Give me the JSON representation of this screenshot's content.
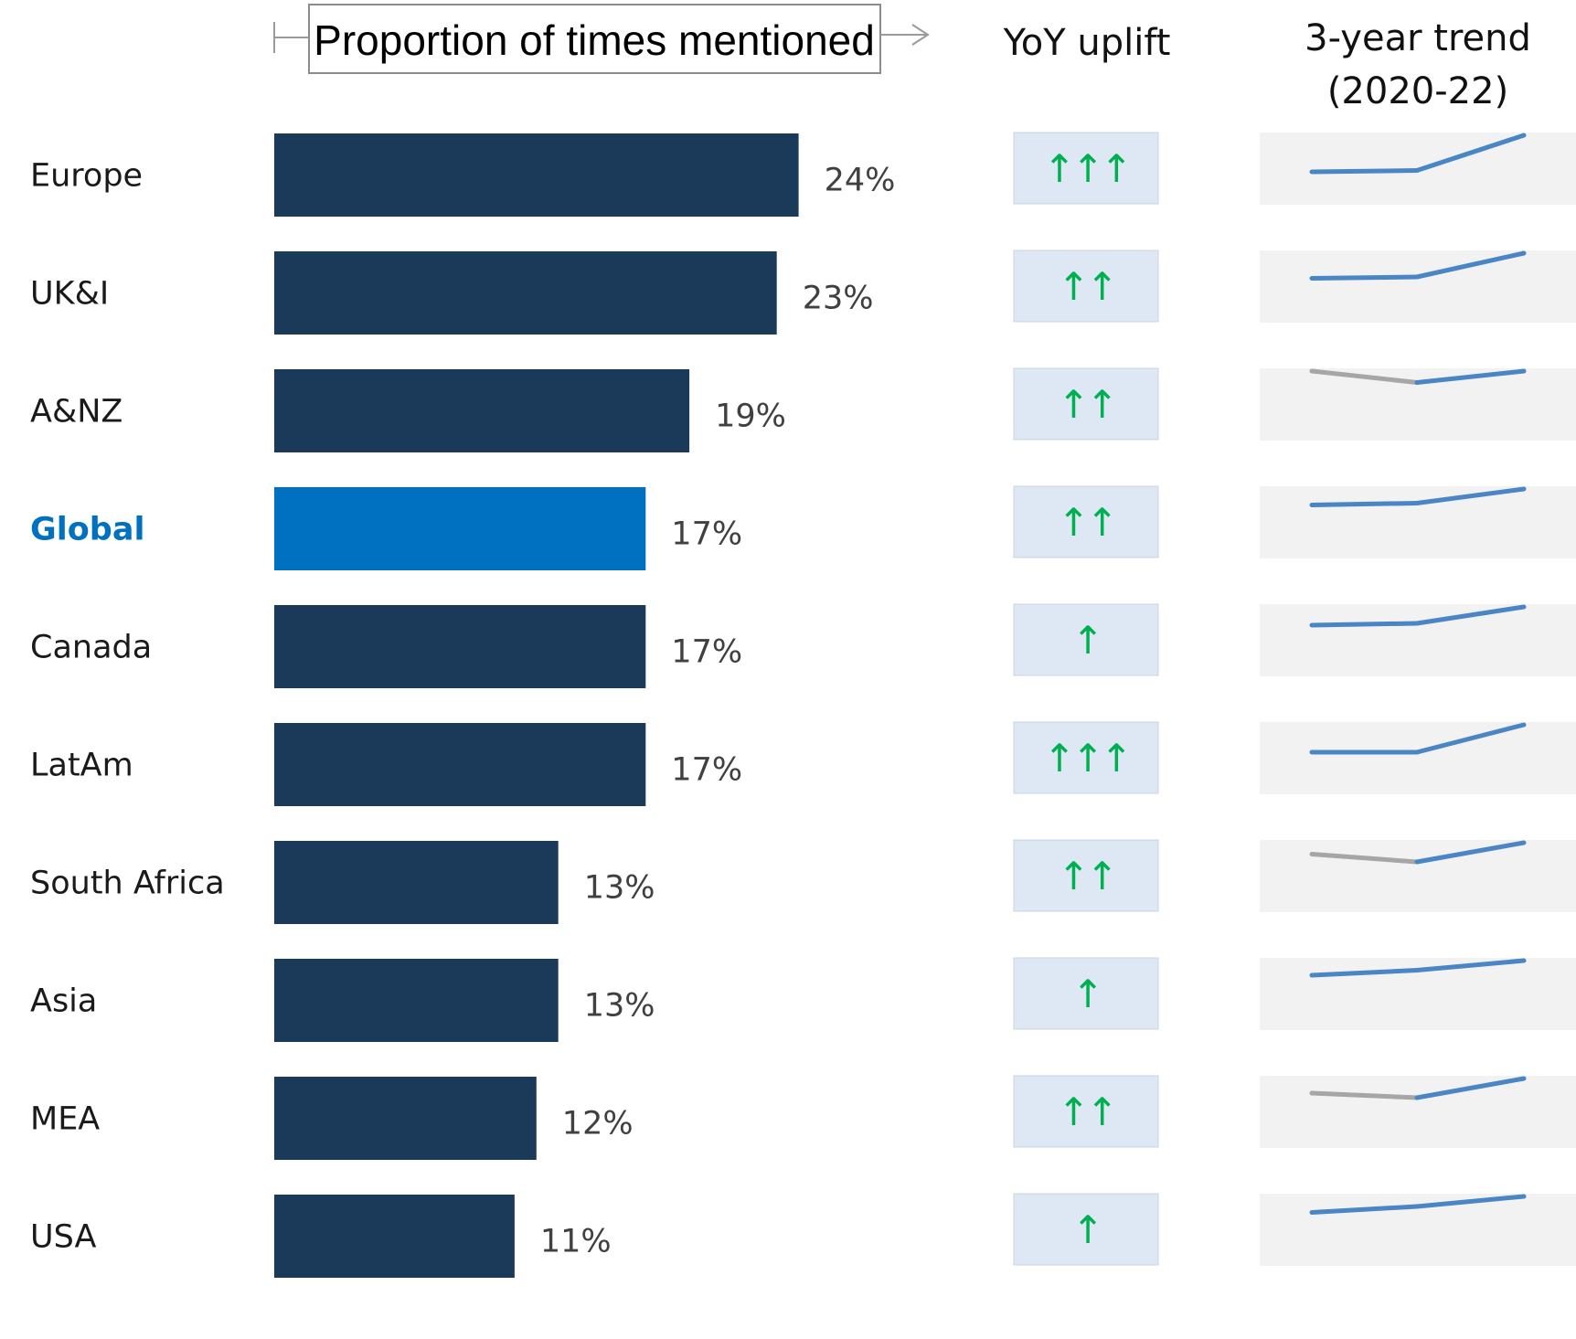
{
  "chart_data": {
    "type": "bar",
    "orientation": "horizontal",
    "title": "Proportion of times mentioned",
    "columns": {
      "yoy_header": "YoY uplift",
      "trend_header_line1": "3-year trend",
      "trend_header_line2": "(2020-22)"
    },
    "xlim": [
      0,
      100
    ],
    "categories": [
      "Europe",
      "UK&I",
      "A&NZ",
      "Global",
      "Canada",
      "LatAm",
      "South Africa",
      "Asia",
      "MEA",
      "USA"
    ],
    "values": [
      24,
      23,
      19,
      17,
      17,
      17,
      13,
      13,
      12,
      11
    ],
    "value_labels": [
      "24%",
      "23%",
      "19%",
      "17%",
      "17%",
      "17%",
      "13%",
      "13%",
      "12%",
      "11%"
    ],
    "highlight_category": "Global",
    "yoy_uplift_arrows": [
      3,
      2,
      2,
      2,
      1,
      3,
      2,
      1,
      2,
      1
    ],
    "trend_years": [
      "2020",
      "2021",
      "2022"
    ],
    "trends": [
      [
        16.0,
        16.3,
        24.0
      ],
      [
        17.5,
        17.8,
        23.0
      ],
      [
        19.0,
        16.5,
        19.0
      ],
      [
        13.5,
        13.9,
        17.0
      ],
      [
        13.0,
        13.4,
        17.0
      ],
      [
        11.0,
        11.0,
        17.0
      ],
      [
        10.5,
        8.8,
        13.0
      ],
      [
        9.8,
        10.9,
        13.0
      ],
      [
        8.8,
        7.8,
        12.0
      ],
      [
        7.5,
        8.8,
        11.0
      ]
    ],
    "trend_scale_span": 11,
    "colors": {
      "bar": "#1B3A5A",
      "highlight_bar": "#0070C0",
      "highlight_text": "#0070C0",
      "arrow": "#00B050",
      "yoy_box": "#DDE8F4",
      "trend_box": "#F2F2F2",
      "trend_up": "#4A86C6",
      "trend_down": "#A6A6A6"
    }
  }
}
